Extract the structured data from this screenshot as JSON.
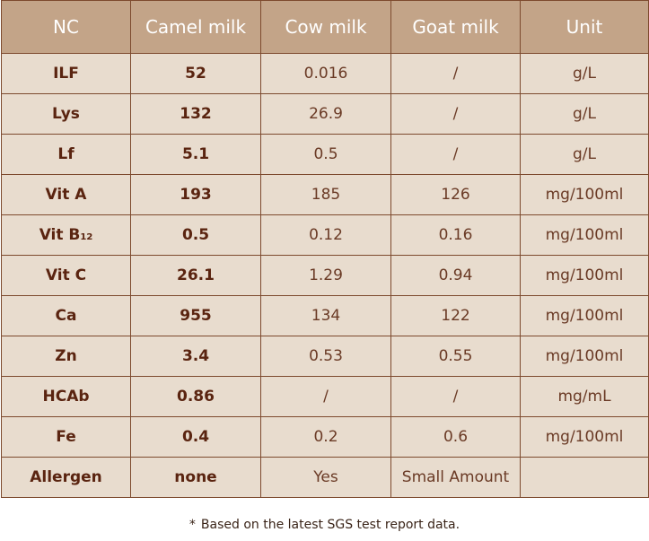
{
  "table": {
    "headers": [
      "NC",
      "Camel milk",
      "Cow milk",
      "Goat milk",
      "Unit"
    ],
    "rows": [
      {
        "nc": "ILF",
        "camel": "52",
        "cow": "0.016",
        "goat": "/",
        "unit": "g/L"
      },
      {
        "nc": "Lys",
        "camel": "132",
        "cow": "26.9",
        "goat": "/",
        "unit": "g/L"
      },
      {
        "nc": "Lf",
        "camel": "5.1",
        "cow": "0.5",
        "goat": "/",
        "unit": "g/L"
      },
      {
        "nc": "Vit A",
        "camel": "193",
        "cow": "185",
        "goat": "126",
        "unit": "mg/100ml"
      },
      {
        "nc": "Vit B",
        "nc_sub": "12",
        "camel": "0.5",
        "cow": "0.12",
        "goat": "0.16",
        "unit": "mg/100ml"
      },
      {
        "nc": "Vit C",
        "camel": "26.1",
        "cow": "1.29",
        "goat": "0.94",
        "unit": "mg/100ml"
      },
      {
        "nc": "Ca",
        "camel": "955",
        "cow": "134",
        "goat": "122",
        "unit": "mg/100ml"
      },
      {
        "nc": "Zn",
        "camel": "3.4",
        "cow": "0.53",
        "goat": "0.55",
        "unit": "mg/100ml"
      },
      {
        "nc": "HCAb",
        "camel": "0.86",
        "cow": "/",
        "goat": "/",
        "unit": "mg/mL"
      },
      {
        "nc": "Fe",
        "camel": "0.4",
        "cow": "0.2",
        "goat": "0.6",
        "unit": "mg/100ml"
      },
      {
        "nc": "Allergen",
        "camel": "none",
        "cow": "Yes",
        "goat": "Small Amount",
        "unit": ""
      }
    ]
  },
  "footnote": {
    "star": "*",
    "text": "Based on the latest SGS test report data."
  },
  "colors": {
    "header_bg": "#c3a488",
    "cell_bg": "#e8dcce",
    "border": "#7d4a2e",
    "text": "#5a2d1a"
  }
}
